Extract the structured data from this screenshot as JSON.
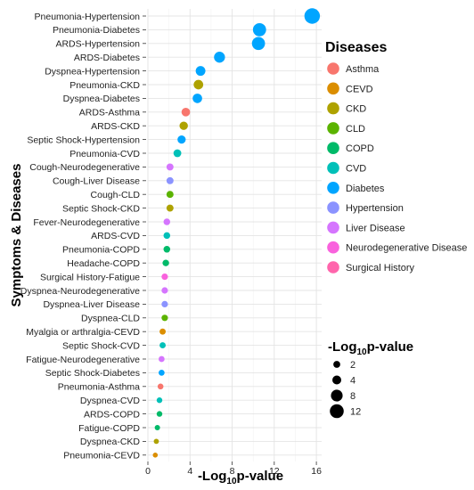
{
  "chart_data": {
    "type": "scatter",
    "xlabel": "-Log10p-value",
    "xlabel_parts": {
      "main": "-Log",
      "sub": "10",
      "rest": "p-value"
    },
    "ylabel": "Symptoms & Diseases",
    "xlim": [
      0,
      16.5
    ],
    "xticks": [
      0,
      4,
      8,
      12,
      16
    ],
    "grid": true,
    "legend_placement": "right",
    "color_legend": {
      "title": "Diseases",
      "entries": [
        {
          "name": "Asthma",
          "color": "#F8766D"
        },
        {
          "name": "CEVD",
          "color": "#DB8E00"
        },
        {
          "name": "CKD",
          "color": "#AEA200"
        },
        {
          "name": "CLD",
          "color": "#5BB300"
        },
        {
          "name": "COPD",
          "color": "#00BA69"
        },
        {
          "name": "CVD",
          "color": "#00C0B8"
        },
        {
          "name": "Diabetes",
          "color": "#00A5FF"
        },
        {
          "name": "Hypertension",
          "color": "#8B93FF"
        },
        {
          "name": "Liver Disease",
          "color": "#D575FE"
        },
        {
          "name": "Neurodegenerative Disease",
          "color": "#F962DD"
        },
        {
          "name": "Surgical History",
          "color": "#FF65AC"
        }
      ]
    },
    "size_legend": {
      "title_parts": {
        "main": "-Log",
        "sub": "10",
        "rest": "p-value"
      },
      "values": [
        2,
        4,
        8,
        12
      ]
    },
    "points": [
      {
        "label": "Pneumonia-Hypertension",
        "x": 15.6,
        "disease": "Diabetes"
      },
      {
        "label": "Pneumonia-Diabetes",
        "x": 10.6,
        "disease": "Diabetes"
      },
      {
        "label": "ARDS-Hypertension",
        "x": 10.5,
        "disease": "Diabetes"
      },
      {
        "label": "ARDS-Diabetes",
        "x": 6.8,
        "disease": "Diabetes"
      },
      {
        "label": "Dyspnea-Hypertension",
        "x": 5.0,
        "disease": "Diabetes"
      },
      {
        "label": "Pneumonia-CKD",
        "x": 4.8,
        "disease": "CKD"
      },
      {
        "label": "Dyspnea-Diabetes",
        "x": 4.7,
        "disease": "Diabetes"
      },
      {
        "label": "ARDS-Asthma",
        "x": 3.6,
        "disease": "Asthma"
      },
      {
        "label": "ARDS-CKD",
        "x": 3.4,
        "disease": "CKD"
      },
      {
        "label": "Septic Shock-Hypertension",
        "x": 3.2,
        "disease": "Diabetes"
      },
      {
        "label": "Pneumonia-CVD",
        "x": 2.8,
        "disease": "CVD"
      },
      {
        "label": "Cough-Neurodegenerative",
        "x": 2.1,
        "disease": "Liver Disease"
      },
      {
        "label": "Cough-Liver Disease",
        "x": 2.1,
        "disease": "Hypertension"
      },
      {
        "label": "Cough-CLD",
        "x": 2.1,
        "disease": "CLD"
      },
      {
        "label": "Septic Shock-CKD",
        "x": 2.1,
        "disease": "CKD"
      },
      {
        "label": "Fever-Neurodegenerative",
        "x": 1.8,
        "disease": "Liver Disease"
      },
      {
        "label": "ARDS-CVD",
        "x": 1.8,
        "disease": "CVD"
      },
      {
        "label": "Pneumonia-COPD",
        "x": 1.8,
        "disease": "COPD"
      },
      {
        "label": "Headache-COPD",
        "x": 1.7,
        "disease": "COPD"
      },
      {
        "label": "Surgical History-Fatigue",
        "x": 1.6,
        "disease": "Neurodegenerative Disease"
      },
      {
        "label": "Dyspnea-Neurodegenerative",
        "x": 1.6,
        "disease": "Liver Disease"
      },
      {
        "label": "Dyspnea-Liver Disease",
        "x": 1.6,
        "disease": "Hypertension"
      },
      {
        "label": "Dyspnea-CLD",
        "x": 1.6,
        "disease": "CLD"
      },
      {
        "label": "Myalgia or arthralgia-CEVD",
        "x": 1.4,
        "disease": "CEVD"
      },
      {
        "label": "Septic Shock-CVD",
        "x": 1.4,
        "disease": "CVD"
      },
      {
        "label": "Fatigue-Neurodegenerative",
        "x": 1.3,
        "disease": "Liver Disease"
      },
      {
        "label": "Septic Shock-Diabetes",
        "x": 1.3,
        "disease": "Diabetes"
      },
      {
        "label": "Pneumonia-Asthma",
        "x": 1.2,
        "disease": "Asthma"
      },
      {
        "label": "Dyspnea-CVD",
        "x": 1.1,
        "disease": "CVD"
      },
      {
        "label": "ARDS-COPD",
        "x": 1.1,
        "disease": "COPD"
      },
      {
        "label": "Fatigue-COPD",
        "x": 0.9,
        "disease": "COPD"
      },
      {
        "label": "Dyspnea-CKD",
        "x": 0.8,
        "disease": "CKD"
      },
      {
        "label": "Pneumonia-CEVD",
        "x": 0.7,
        "disease": "CEVD"
      }
    ]
  }
}
